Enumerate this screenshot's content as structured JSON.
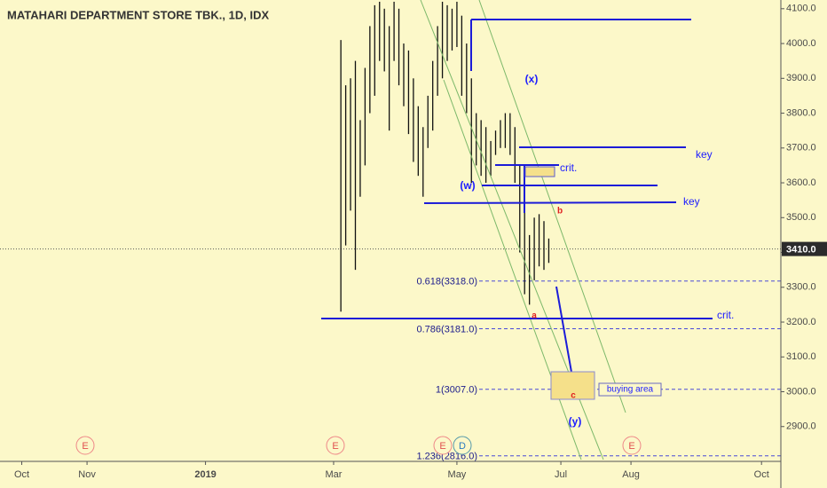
{
  "chart_data": {
    "type": "ohlc",
    "title": "MATAHARI DEPARTMENT STORE TBK., 1D, IDX",
    "x": [
      141,
      143,
      145,
      147,
      149,
      151,
      153,
      155,
      157,
      159,
      161,
      163,
      165,
      167,
      169,
      171,
      173,
      175,
      177,
      179,
      181,
      183,
      185,
      187,
      189,
      191,
      193,
      195,
      197,
      199,
      201,
      203,
      205,
      207,
      209,
      211,
      213,
      215,
      217,
      219,
      221,
      223,
      225,
      227
    ],
    "high": [
      4010,
      3880,
      3900,
      3950,
      3780,
      3930,
      4050,
      4110,
      4120,
      4100,
      4050,
      4120,
      4100,
      4000,
      3980,
      3900,
      3820,
      3760,
      3850,
      3950,
      4050,
      4120,
      4110,
      4100,
      4120,
      4080,
      4000,
      3900,
      3800,
      3780,
      3760,
      3720,
      3750,
      3780,
      3800,
      3800,
      3760,
      3650,
      3600,
      3450,
      3500,
      3510,
      3490,
      3440
    ],
    "low": [
      3230,
      3420,
      3520,
      3350,
      3560,
      3650,
      3800,
      3850,
      3950,
      3920,
      3750,
      3950,
      3880,
      3820,
      3740,
      3660,
      3620,
      3560,
      3700,
      3750,
      3850,
      3900,
      3950,
      3980,
      3990,
      3850,
      3800,
      3600,
      3650,
      3620,
      3600,
      3620,
      3680,
      3700,
      3700,
      3680,
      3600,
      3400,
      3280,
      3250,
      3320,
      3360,
      3350,
      3370
    ],
    "color": "#111111",
    "xlim": [
      0,
      323
    ],
    "xticks": [
      {
        "value": 9,
        "label": "Oct"
      },
      {
        "value": 36,
        "label": "Nov"
      },
      {
        "value": 85,
        "label": "2019"
      },
      {
        "value": 138,
        "label": "Mar"
      },
      {
        "value": 189,
        "label": "May"
      },
      {
        "value": 232,
        "label": "Jul"
      },
      {
        "value": 261,
        "label": "Aug"
      },
      {
        "value": 315,
        "label": "Oct"
      }
    ],
    "ylim": [
      2800,
      4125
    ],
    "yticks": [
      {
        "value": 2900,
        "label": "2900.0"
      },
      {
        "value": 3000,
        "label": "3000.0"
      },
      {
        "value": 3100,
        "label": "3100.0"
      },
      {
        "value": 3200,
        "label": "3200.0"
      },
      {
        "value": 3300,
        "label": "3300.0"
      },
      {
        "value": 3400,
        "label": "3400.0"
      },
      {
        "value": 3500,
        "label": "3500.0"
      },
      {
        "value": 3600,
        "label": "3600.0"
      },
      {
        "value": 3700,
        "label": "3700.0"
      },
      {
        "value": 3800,
        "label": "3800.0"
      },
      {
        "value": 3900,
        "label": "3900.0"
      },
      {
        "value": 4000,
        "label": "4000.0"
      },
      {
        "value": 4100,
        "label": "4100.0"
      }
    ],
    "last_price": {
      "value": 3410,
      "label": "3410.0"
    },
    "fib_levels": [
      {
        "value": 3318,
        "label": "0.618(3318.0)"
      },
      {
        "value": 3181,
        "label": "0.786(3181.0)"
      },
      {
        "value": 3007,
        "label": "1(3007.0)"
      },
      {
        "value": 2816,
        "label": "1.236(2816.0)"
      }
    ],
    "annotations": [
      "(x)",
      "(w)",
      "(y)",
      "key",
      "key",
      "crit.",
      "crit.",
      "a",
      "b",
      "c",
      "buying  area"
    ],
    "events": [
      "E",
      "E",
      "E",
      "D",
      "E"
    ]
  }
}
